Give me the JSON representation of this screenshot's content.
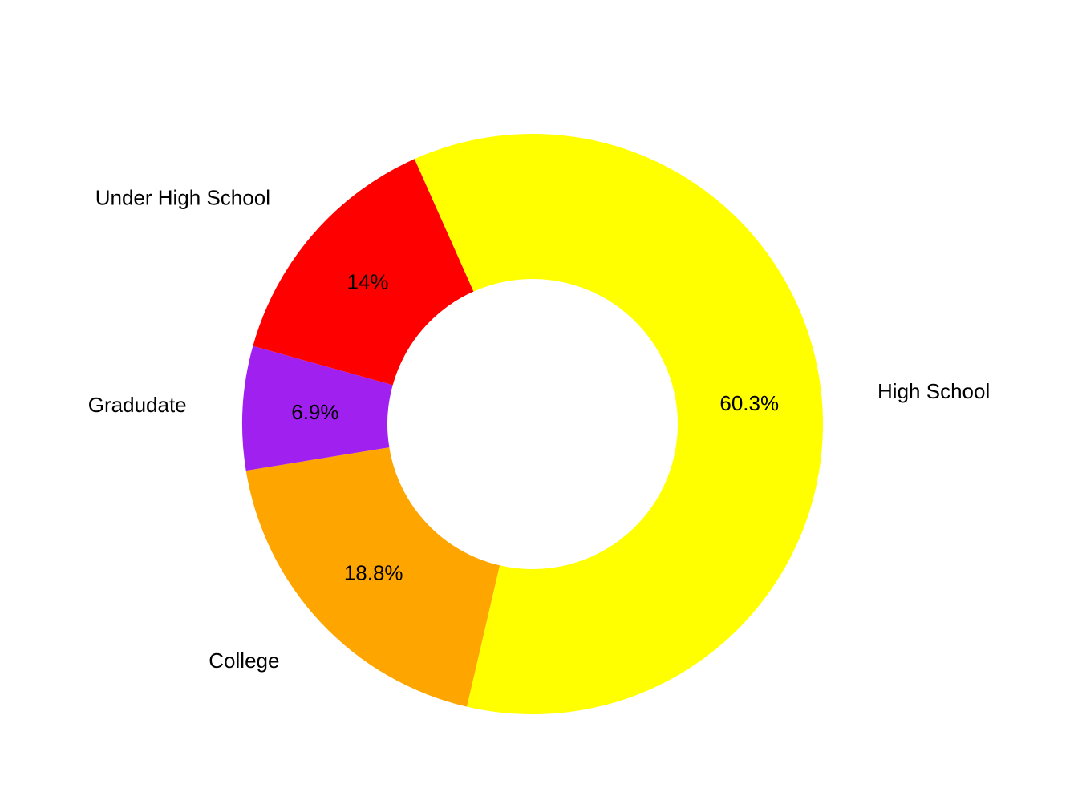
{
  "chart_data": {
    "type": "pie",
    "variant": "donut",
    "title": "",
    "categories": [
      "High School",
      "College",
      "Gradudate",
      "Under High School"
    ],
    "values": [
      60.3,
      18.8,
      6.9,
      14.0
    ],
    "percent_labels": [
      "60.3%",
      "18.8%",
      "6.9%",
      "14%"
    ],
    "colors": [
      "#ffff00",
      "#ffa500",
      "#a020f0",
      "#ff0000"
    ],
    "start_angle_deg": 114,
    "direction": "clockwise",
    "hole_ratio": 0.5,
    "legend": "none"
  }
}
